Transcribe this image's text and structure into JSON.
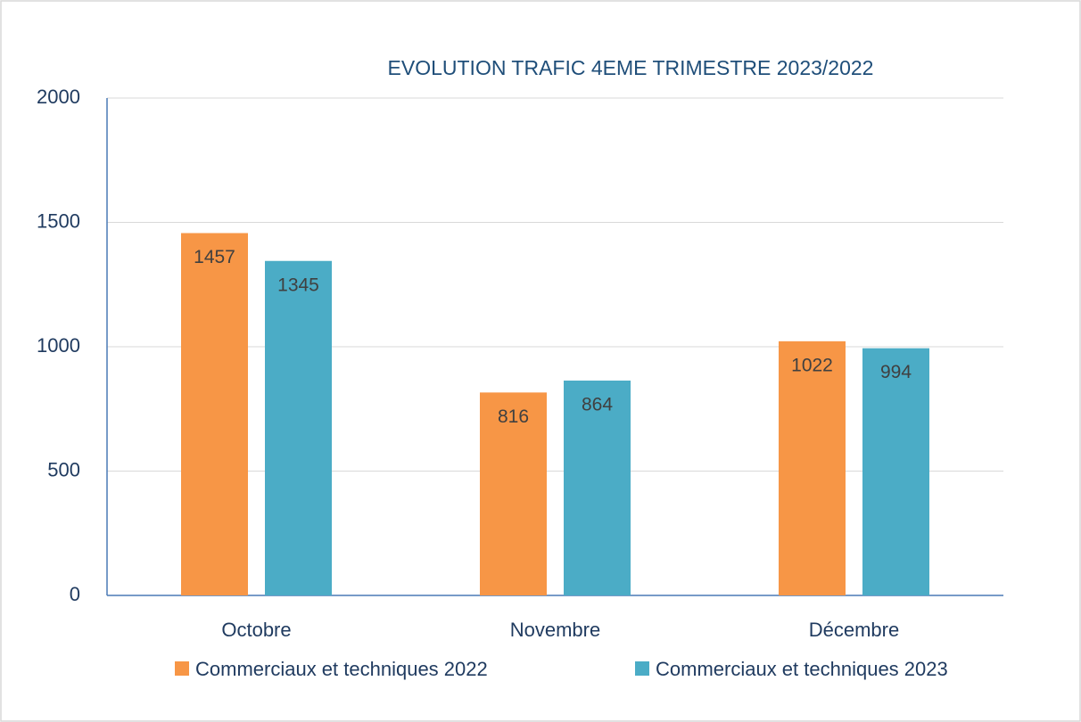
{
  "chart_data": {
    "type": "bar",
    "title": "EVOLUTION TRAFIC 4EME TRIMESTRE 2023/2022",
    "categories": [
      "Octobre",
      "Novembre",
      "Décembre"
    ],
    "series": [
      {
        "name": "Commerciaux et techniques 2022",
        "color": "#f79646",
        "values": [
          1457,
          816,
          1022
        ]
      },
      {
        "name": "Commerciaux et techniques 2023",
        "color": "#4bacc6",
        "values": [
          1345,
          864,
          994
        ]
      }
    ],
    "ylim": [
      0,
      2000
    ],
    "yticks": [
      0,
      500,
      1000,
      1500,
      2000
    ],
    "grid": true
  }
}
